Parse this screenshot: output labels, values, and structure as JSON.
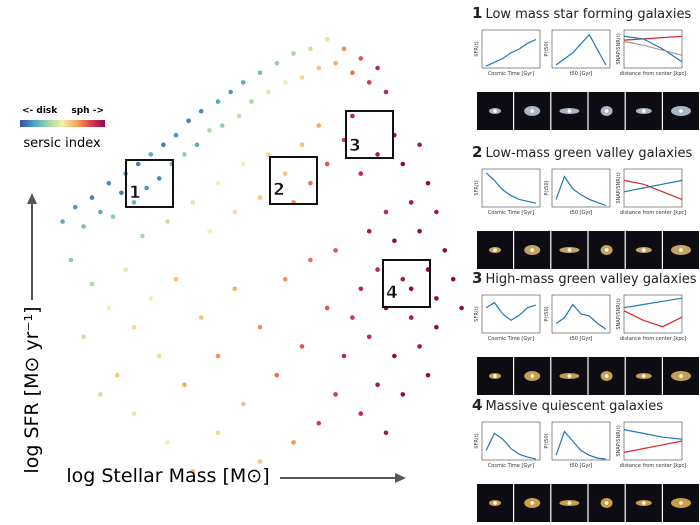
{
  "chart_data": {
    "type": "scatter",
    "xlabel": "log Stellar Mass [M⊙]",
    "ylabel": "log SFR [M⊙ yr⁻¹]",
    "colorbar": {
      "label": "sersic index",
      "left_label": "<- disk",
      "right_label": "sph ->"
    },
    "colormap": [
      "#3b4da0",
      "#4aa3c7",
      "#9fd7a6",
      "#f3f0a8",
      "#f9a45b",
      "#d6404e",
      "#8b0a4c"
    ],
    "xlim": [
      0,
      100
    ],
    "ylim": [
      0,
      100
    ],
    "x": [
      3,
      6,
      8,
      10,
      12,
      14,
      15,
      17,
      18,
      20,
      21,
      23,
      24,
      26,
      27,
      29,
      30,
      32,
      33,
      35,
      36,
      38,
      40,
      41,
      43,
      45,
      46,
      48,
      50,
      52,
      54,
      56,
      58,
      60,
      62,
      64,
      66,
      68,
      70,
      72,
      74,
      76,
      78,
      80,
      22,
      28,
      34,
      40,
      46,
      52,
      56,
      60,
      64,
      38,
      44,
      50,
      58,
      62,
      66,
      70,
      72,
      74,
      78,
      82,
      84,
      88,
      90,
      86,
      80,
      76,
      82,
      88,
      92,
      94,
      90,
      84,
      78,
      74,
      80,
      86,
      92,
      96,
      88,
      82,
      76,
      72,
      70,
      78,
      84,
      90,
      74,
      68,
      80,
      86,
      92,
      98,
      5,
      10,
      14,
      8,
      18,
      20,
      24,
      16,
      26,
      30,
      32,
      36,
      40,
      44,
      46,
      50,
      54,
      56,
      60,
      62,
      64,
      58,
      50,
      40,
      28,
      20,
      12,
      34,
      66,
      68
    ],
    "y": [
      58,
      61,
      57,
      63,
      60,
      66,
      59,
      64,
      68,
      62,
      70,
      65,
      72,
      67,
      74,
      70,
      76,
      72,
      79,
      74,
      81,
      77,
      83,
      78,
      85,
      80,
      87,
      83,
      89,
      85,
      91,
      87,
      93,
      88,
      94,
      90,
      96,
      91,
      94,
      89,
      92,
      87,
      90,
      85,
      55,
      58,
      62,
      66,
      70,
      72,
      68,
      74,
      78,
      56,
      60,
      63,
      62,
      66,
      70,
      75,
      80,
      68,
      72,
      76,
      70,
      74,
      66,
      62,
      60,
      56,
      54,
      56,
      60,
      52,
      48,
      46,
      48,
      44,
      40,
      38,
      42,
      46,
      32,
      30,
      34,
      38,
      30,
      24,
      22,
      26,
      18,
      22,
      14,
      44,
      36,
      40,
      50,
      45,
      40,
      34,
      48,
      36,
      42,
      26,
      30,
      46,
      24,
      38,
      30,
      44,
      20,
      36,
      26,
      46,
      32,
      50,
      16,
      12,
      8,
      14,
      12,
      18,
      22,
      6,
      40,
      52
    ],
    "c": [
      0.2,
      0.15,
      0.25,
      0.1,
      0.2,
      0.12,
      0.3,
      0.1,
      0.18,
      0.22,
      0.1,
      0.15,
      0.2,
      0.12,
      0.08,
      0.25,
      0.15,
      0.3,
      0.1,
      0.2,
      0.12,
      0.35,
      0.18,
      0.3,
      0.15,
      0.4,
      0.2,
      0.35,
      0.25,
      0.45,
      0.3,
      0.5,
      0.35,
      0.55,
      0.4,
      0.6,
      0.45,
      0.65,
      0.7,
      0.75,
      0.8,
      0.85,
      0.9,
      0.9,
      0.35,
      0.4,
      0.45,
      0.5,
      0.5,
      0.55,
      0.6,
      0.6,
      0.65,
      0.5,
      0.55,
      0.6,
      0.7,
      0.75,
      0.8,
      0.85,
      0.9,
      0.9,
      0.95,
      0.95,
      1,
      0.95,
      1,
      0.95,
      0.9,
      0.95,
      1,
      1,
      0.95,
      1,
      1,
      0.95,
      0.9,
      0.9,
      1,
      0.95,
      1,
      1,
      0.95,
      1,
      0.9,
      0.85,
      0.9,
      0.95,
      1,
      1,
      0.9,
      0.85,
      0.95,
      1,
      1,
      1,
      0.3,
      0.35,
      0.5,
      0.4,
      0.45,
      0.55,
      0.5,
      0.6,
      0.55,
      0.6,
      0.65,
      0.6,
      0.7,
      0.65,
      0.6,
      0.7,
      0.75,
      0.7,
      0.8,
      0.75,
      0.85,
      0.7,
      0.6,
      0.55,
      0.5,
      0.45,
      0.4,
      0.6,
      0.8,
      0.8
    ],
    "boxes": [
      "1",
      "2",
      "3",
      "4"
    ],
    "mini_x": [
      1,
      3,
      5,
      7,
      9,
      11,
      13
    ],
    "mini_xlim": [
      0,
      14
    ],
    "profile_x": [
      0,
      1,
      2,
      3
    ],
    "profile_xlim": [
      0,
      3
    ],
    "panels": [
      {
        "number": "1",
        "title": "Low mass star forming galaxies",
        "thumb_color": "#c8d4ea",
        "sfh": {
          "ylabel": "SFR(t)",
          "xlabel": "Cosmic Time [Gyr]",
          "ylim": [
            0,
            2
          ],
          "values": [
            0.1,
            0.3,
            0.5,
            0.8,
            1.0,
            1.3,
            1.5
          ]
        },
        "t50": {
          "ylabel": "P(t50)",
          "xlabel": "t50 [Gyr]",
          "ylim": [
            0,
            0.25
          ],
          "values": [
            0.02,
            0.06,
            0.1,
            0.16,
            0.22,
            0.12,
            0.02
          ]
        },
        "profile": {
          "ylabel": "SNAP/SNR(t)",
          "xlabel": "distance from center [kpc]",
          "ylim": [
            -2,
            1
          ],
          "series": [
            {
              "color": "#d62728",
              "values": [
                0.2,
                0.3,
                0.4,
                0.5
              ]
            },
            {
              "color": "#1f77b4",
              "values": [
                0.5,
                0.3,
                -0.5,
                -1.5
              ]
            },
            {
              "color": "#999999",
              "values": [
                0.1,
                -0.2,
                -0.6,
                -1.0
              ]
            }
          ]
        }
      },
      {
        "number": "2",
        "title": "Low-mass green valley galaxies",
        "thumb_color": "#e8c070",
        "sfh": {
          "ylabel": "SFR(t)",
          "xlabel": "Cosmic Time [Gyr]",
          "ylim": [
            0,
            20
          ],
          "values": [
            18,
            14,
            9,
            6,
            4,
            3,
            2
          ]
        },
        "t50": {
          "ylabel": "P(t50)",
          "xlabel": "t50 [Gyr]",
          "ylim": [
            0,
            0.25
          ],
          "values": [
            0.05,
            0.2,
            0.12,
            0.08,
            0.05,
            0.03,
            0.01
          ]
        },
        "profile": {
          "ylabel": "SNAP/SNR(t)",
          "xlabel": "distance from center [kpc]",
          "ylim": [
            -0.5,
            0.5
          ],
          "series": [
            {
              "color": "#d62728",
              "values": [
                0.2,
                0.1,
                -0.1,
                -0.3
              ]
            },
            {
              "color": "#1f77b4",
              "values": [
                -0.1,
                0,
                0.1,
                0.2
              ]
            }
          ]
        }
      },
      {
        "number": "3",
        "title": "High-mass green valley galaxies",
        "thumb_color": "#e8b860",
        "sfh": {
          "ylabel": "SFR(t)",
          "xlabel": "Cosmic Time [Gyr]",
          "ylim": [
            0,
            30
          ],
          "values": [
            20,
            24,
            15,
            10,
            14,
            20,
            22
          ]
        },
        "t50": {
          "ylabel": "P(t50)",
          "xlabel": "t50 [Gyr]",
          "ylim": [
            0,
            0.2
          ],
          "values": [
            0.05,
            0.08,
            0.15,
            0.1,
            0.09,
            0.05,
            0.02
          ]
        },
        "profile": {
          "ylabel": "SNAP/SNR(t)",
          "xlabel": "distance from center [kpc]",
          "ylim": [
            -0.3,
            0.3
          ],
          "series": [
            {
              "color": "#d62728",
              "values": [
                0.05,
                -0.1,
                -0.2,
                -0.05
              ]
            },
            {
              "color": "#1f77b4",
              "values": [
                0.1,
                0.15,
                0.2,
                0.25
              ]
            }
          ]
        }
      },
      {
        "number": "4",
        "title": "Massive quiescent galaxies",
        "thumb_color": "#f0b850",
        "sfh": {
          "ylabel": "SFR(t)",
          "xlabel": "Cosmic Time [Gyr]",
          "ylim": [
            0,
            40
          ],
          "values": [
            10,
            28,
            22,
            12,
            6,
            3,
            1
          ]
        },
        "t50": {
          "ylabel": "P(t50)",
          "xlabel": "t50 [Gyr]",
          "ylim": [
            0,
            0.4
          ],
          "values": [
            0.05,
            0.3,
            0.2,
            0.1,
            0.05,
            0.02,
            0.01
          ]
        },
        "profile": {
          "ylabel": "SNAP/SNR(t)",
          "xlabel": "distance from center [kpc]",
          "ylim": [
            -0.5,
            0.5
          ],
          "series": [
            {
              "color": "#d62728",
              "values": [
                -0.3,
                -0.2,
                -0.1,
                0
              ]
            },
            {
              "color": "#1f77b4",
              "values": [
                0.3,
                0.2,
                0.1,
                0.05
              ]
            }
          ]
        }
      }
    ]
  }
}
